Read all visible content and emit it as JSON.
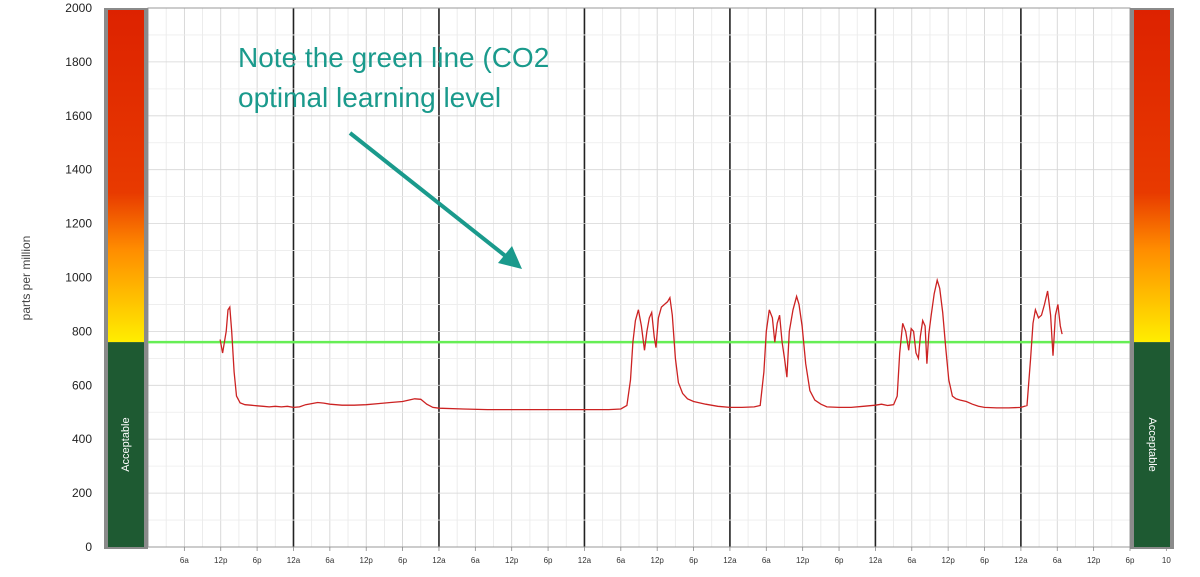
{
  "chart_data": {
    "type": "line",
    "ylabel": "parts per million",
    "ylim": [
      0,
      2000
    ],
    "y_ticks": [
      0,
      200,
      400,
      600,
      800,
      1000,
      1200,
      1400,
      1600,
      1800,
      2000
    ],
    "x_tick_labels": [
      "6a",
      "12p",
      "6p",
      "12a",
      "6a",
      "12p",
      "6p",
      "12a",
      "6a",
      "12p",
      "6p",
      "12a",
      "6a",
      "12p",
      "6p",
      "12a",
      "6a",
      "12p",
      "6p",
      "12a",
      "6a",
      "12p",
      "6p",
      "12a",
      "6a",
      "12p",
      "6p",
      "10"
    ],
    "threshold_line": {
      "value": 760,
      "color": "#66ee55"
    },
    "band_label": "Acceptable",
    "band_colors": {
      "acceptable": "#1e5a32",
      "gradient_top": "#dd2200",
      "gradient_mid": "#ff8800",
      "gradient_bottom": "#ffee00"
    },
    "series": [
      {
        "color": "#cc2222",
        "points": [
          [
            11.9,
            770
          ],
          [
            12.3,
            720
          ],
          [
            12.6,
            760
          ],
          [
            12.9,
            800
          ],
          [
            13.2,
            880
          ],
          [
            13.5,
            890
          ],
          [
            13.8,
            800
          ],
          [
            14.2,
            650
          ],
          [
            14.6,
            560
          ],
          [
            15.2,
            535
          ],
          [
            16,
            528
          ],
          [
            17,
            526
          ],
          [
            18,
            524
          ],
          [
            19,
            522
          ],
          [
            20,
            520
          ],
          [
            21,
            522
          ],
          [
            22,
            520
          ],
          [
            23,
            522
          ],
          [
            24,
            518
          ],
          [
            25,
            520
          ],
          [
            26,
            528
          ],
          [
            27,
            532
          ],
          [
            28,
            536
          ],
          [
            29,
            534
          ],
          [
            30,
            530
          ],
          [
            31,
            528
          ],
          [
            32,
            526
          ],
          [
            34,
            526
          ],
          [
            36,
            528
          ],
          [
            38,
            532
          ],
          [
            40,
            536
          ],
          [
            42,
            540
          ],
          [
            43,
            545
          ],
          [
            44,
            550
          ],
          [
            45,
            548
          ],
          [
            46,
            530
          ],
          [
            47,
            518
          ],
          [
            48,
            515
          ],
          [
            52,
            512
          ],
          [
            56,
            510
          ],
          [
            60,
            510
          ],
          [
            64,
            510
          ],
          [
            68,
            510
          ],
          [
            72,
            510
          ],
          [
            76,
            510
          ],
          [
            78,
            512
          ],
          [
            79,
            525
          ],
          [
            79.6,
            620
          ],
          [
            80,
            760
          ],
          [
            80.4,
            840
          ],
          [
            80.9,
            880
          ],
          [
            81.4,
            820
          ],
          [
            81.9,
            730
          ],
          [
            82.3,
            800
          ],
          [
            82.7,
            850
          ],
          [
            83.1,
            870
          ],
          [
            83.5,
            780
          ],
          [
            83.8,
            740
          ],
          [
            84.2,
            850
          ],
          [
            84.7,
            890
          ],
          [
            85.2,
            900
          ],
          [
            85.7,
            910
          ],
          [
            86.1,
            925
          ],
          [
            86.5,
            860
          ],
          [
            87,
            700
          ],
          [
            87.5,
            610
          ],
          [
            88.2,
            570
          ],
          [
            89,
            550
          ],
          [
            90,
            540
          ],
          [
            92,
            530
          ],
          [
            94,
            522
          ],
          [
            96,
            518
          ],
          [
            98,
            518
          ],
          [
            100,
            520
          ],
          [
            101,
            525
          ],
          [
            101.6,
            650
          ],
          [
            102,
            800
          ],
          [
            102.5,
            880
          ],
          [
            103,
            850
          ],
          [
            103.4,
            760
          ],
          [
            103.8,
            830
          ],
          [
            104.2,
            860
          ],
          [
            104.6,
            760
          ],
          [
            105,
            700
          ],
          [
            105.4,
            630
          ],
          [
            105.8,
            800
          ],
          [
            106.4,
            880
          ],
          [
            107,
            930
          ],
          [
            107.4,
            900
          ],
          [
            107.9,
            820
          ],
          [
            108.5,
            680
          ],
          [
            109.2,
            580
          ],
          [
            110,
            545
          ],
          [
            111,
            530
          ],
          [
            112,
            520
          ],
          [
            114,
            518
          ],
          [
            116,
            518
          ],
          [
            118,
            522
          ],
          [
            120,
            526
          ],
          [
            121,
            530
          ],
          [
            122,
            525
          ],
          [
            123,
            528
          ],
          [
            123.6,
            560
          ],
          [
            124,
            720
          ],
          [
            124.5,
            830
          ],
          [
            125,
            800
          ],
          [
            125.5,
            730
          ],
          [
            125.9,
            810
          ],
          [
            126.3,
            800
          ],
          [
            126.7,
            720
          ],
          [
            127.1,
            700
          ],
          [
            127.4,
            780
          ],
          [
            127.8,
            840
          ],
          [
            128.2,
            820
          ],
          [
            128.5,
            680
          ],
          [
            128.8,
            790
          ],
          [
            129.2,
            860
          ],
          [
            129.7,
            940
          ],
          [
            130.2,
            990
          ],
          [
            130.6,
            960
          ],
          [
            131.1,
            870
          ],
          [
            131.6,
            740
          ],
          [
            132.1,
            620
          ],
          [
            132.7,
            560
          ],
          [
            133.3,
            550
          ],
          [
            134,
            545
          ],
          [
            135,
            540
          ],
          [
            136,
            530
          ],
          [
            137,
            522
          ],
          [
            138,
            518
          ],
          [
            140,
            516
          ],
          [
            142,
            516
          ],
          [
            144,
            518
          ],
          [
            145,
            525
          ],
          [
            145.6,
            700
          ],
          [
            146,
            830
          ],
          [
            146.4,
            880
          ],
          [
            146.9,
            850
          ],
          [
            147.4,
            860
          ],
          [
            147.9,
            900
          ],
          [
            148.4,
            950
          ],
          [
            148.9,
            860
          ],
          [
            149.3,
            710
          ],
          [
            149.7,
            860
          ],
          [
            150.1,
            900
          ],
          [
            150.5,
            820
          ],
          [
            150.8,
            790
          ]
        ]
      }
    ],
    "annotation": {
      "lines": [
        "Note the green line (CO2",
        "optimal learning level"
      ],
      "arrow_color": "#1a9a8c"
    }
  }
}
